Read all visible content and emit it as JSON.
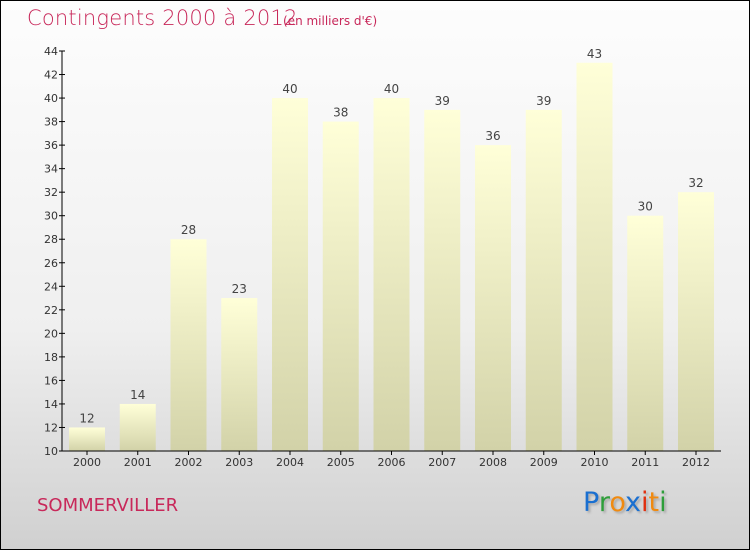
{
  "title": "Contingents 2000 à 2012",
  "unit": "(en milliers d'€)",
  "city": "SOMMERVILLER",
  "logo": {
    "text": "Proxiti",
    "letters": [
      [
        "P",
        "#1a6fd0"
      ],
      [
        "r",
        "#2e9e3a"
      ],
      [
        "o",
        "#f08a10"
      ],
      [
        "x",
        "#1a6fd0"
      ],
      [
        "i",
        "#e03010"
      ],
      [
        "t",
        "#f08a10"
      ],
      [
        "i",
        "#2e9e3a"
      ]
    ]
  },
  "chart_data": {
    "type": "bar",
    "title": "Contingents 2000 à 2012",
    "xlabel": "",
    "ylabel": "",
    "categories": [
      "2000",
      "2001",
      "2002",
      "2003",
      "2004",
      "2005",
      "2006",
      "2007",
      "2008",
      "2009",
      "2010",
      "2011",
      "2012"
    ],
    "values": [
      12,
      14,
      28,
      23,
      40,
      38,
      40,
      39,
      36,
      39,
      43,
      30,
      32
    ],
    "ylim": [
      10,
      44
    ],
    "yticks": [
      10,
      12,
      14,
      16,
      18,
      20,
      22,
      24,
      26,
      28,
      30,
      32,
      34,
      36,
      38,
      40,
      42,
      44
    ],
    "grid": false
  }
}
